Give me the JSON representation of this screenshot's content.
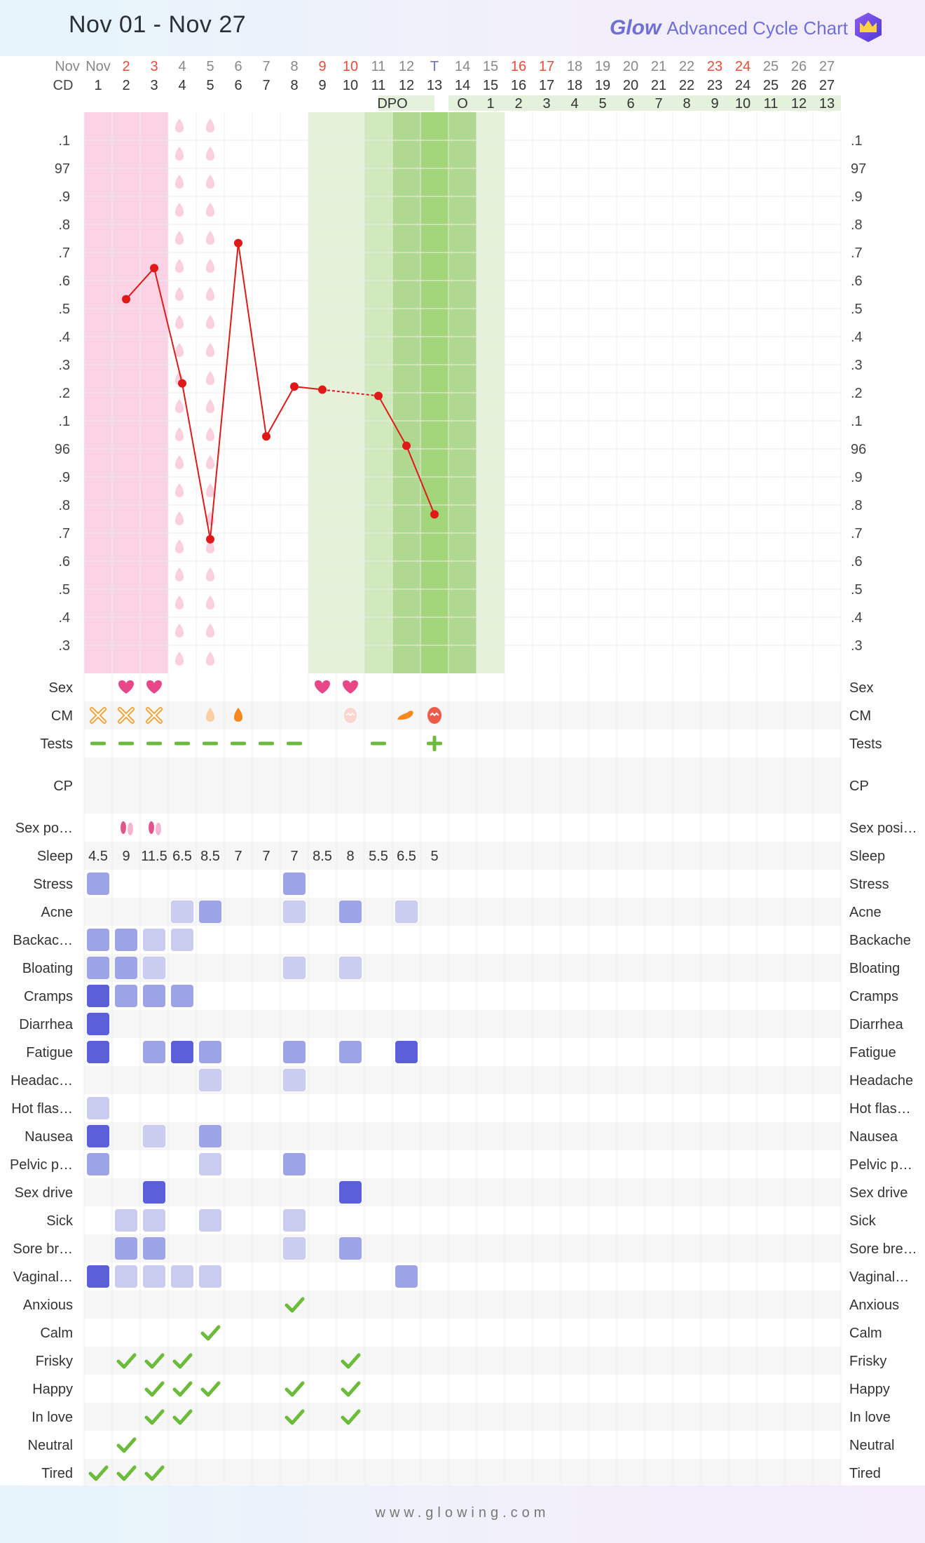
{
  "header": {
    "date_range": "Nov 01 - Nov 27",
    "brand_glow": "Glow",
    "brand_subtitle": "Advanced Cycle Chart"
  },
  "footer": {
    "url": "www.glowing.com"
  },
  "colors": {
    "period": "#fbd3e4",
    "fertile_light": "#e5f2d9",
    "fertile_mid": "#d0e9bd",
    "fertile_dark": "#b0d891",
    "peak": "#a3d57a",
    "temp_line": "#e01818",
    "heart": "#e94589",
    "check": "#6dbb3c",
    "accent": "#6f6fd6",
    "red_label": "#e84b3b"
  },
  "days": {
    "month_label": "Nov",
    "cd_label": "CD",
    "dpo_label": "DPO",
    "dates": [
      "Nov",
      "2",
      "3",
      "4",
      "5",
      "6",
      "7",
      "8",
      "9",
      "10",
      "11",
      "12",
      "T",
      "14",
      "15",
      "16",
      "17",
      "18",
      "19",
      "20",
      "21",
      "22",
      "23",
      "24",
      "25",
      "26",
      "27"
    ],
    "date_colors": [
      "gray",
      "red",
      "red",
      "gray",
      "gray",
      "gray",
      "gray",
      "gray",
      "red",
      "red",
      "gray",
      "gray",
      "purple",
      "gray",
      "gray",
      "red",
      "red",
      "gray",
      "gray",
      "gray",
      "gray",
      "gray",
      "red",
      "red",
      "gray",
      "gray",
      "gray"
    ],
    "cd": [
      "1",
      "2",
      "3",
      "4",
      "5",
      "6",
      "7",
      "8",
      "9",
      "10",
      "11",
      "12",
      "13",
      "14",
      "15",
      "16",
      "17",
      "18",
      "19",
      "20",
      "21",
      "22",
      "23",
      "24",
      "25",
      "26",
      "27"
    ],
    "dpo": [
      "O",
      "1",
      "2",
      "3",
      "4",
      "5",
      "6",
      "7",
      "8",
      "9",
      "10",
      "11",
      "12",
      "13"
    ]
  },
  "temp_axis_labels": [
    ".1",
    "97",
    ".9",
    ".8",
    ".7",
    ".6",
    ".5",
    ".4",
    ".3",
    ".2",
    ".1",
    "96",
    ".9",
    ".8",
    ".7",
    ".6",
    ".5",
    ".4",
    ".3"
  ],
  "chart_data": {
    "type": "line",
    "title": "",
    "xlabel": "CD",
    "ylabel": "",
    "ylim": [
      95.3,
      97.1
    ],
    "x": [
      2,
      3,
      4,
      5,
      6,
      7,
      8,
      9,
      11,
      12,
      13
    ],
    "y": [
      96.5,
      96.6,
      96.23,
      95.73,
      96.68,
      96.06,
      96.22,
      96.21,
      96.19,
      96.03,
      95.81
    ],
    "dashed_segment_between": [
      9,
      11
    ],
    "period_days": [
      1,
      2,
      3
    ],
    "spotting_days": [
      4,
      5
    ],
    "fertile_days": [
      9,
      10,
      11,
      12,
      13,
      14,
      15
    ],
    "peak_day": 13
  },
  "rows": [
    {
      "label_left": "Sex",
      "label_right": "Sex",
      "kind": "heart",
      "cells": {
        "2": 1,
        "3": 1,
        "9": 1,
        "10": 1
      }
    },
    {
      "label_left": "CM",
      "label_right": "CM",
      "kind": "cm",
      "cells": {
        "1": "dry",
        "2": "dry",
        "3": "dry",
        "5": "sticky",
        "6": "creamy",
        "10": "eggwhite-pale",
        "12": "watery",
        "13": "eggwhite"
      }
    },
    {
      "label_left": "Tests",
      "label_right": "Tests",
      "kind": "test",
      "cells": {
        "1": "neg",
        "2": "neg",
        "3": "neg",
        "4": "neg",
        "5": "neg",
        "6": "neg",
        "7": "neg",
        "8": "neg",
        "11": "neg",
        "13": "pos"
      }
    },
    {
      "label_left": "CP",
      "label_right": "CP",
      "kind": "empty",
      "tall": true,
      "cells": {}
    },
    {
      "label_left": "Sex po…",
      "label_right": "Sex posi…",
      "kind": "feet",
      "cells": {
        "2": 1,
        "3": 1
      }
    },
    {
      "label_left": "Sleep",
      "label_right": "Sleep",
      "kind": "text",
      "cells": {
        "1": "4.5",
        "2": "9",
        "3": "11.5",
        "4": "6.5",
        "5": "8.5",
        "6": "7",
        "7": "7",
        "8": "7",
        "9": "8.5",
        "10": "8",
        "11": "5.5",
        "12": "6.5",
        "13": "5"
      }
    },
    {
      "label_left": "Stress",
      "label_right": "Stress",
      "kind": "sym",
      "cells": {
        "1": 2,
        "8": 2
      }
    },
    {
      "label_left": "Acne",
      "label_right": "Acne",
      "kind": "sym",
      "cells": {
        "4": 1,
        "5": 2,
        "8": 1,
        "10": 2,
        "12": 1
      }
    },
    {
      "label_left": "Backac…",
      "label_right": "Backache",
      "kind": "sym",
      "cells": {
        "1": 2,
        "2": 2,
        "3": 1,
        "4": 1
      }
    },
    {
      "label_left": "Bloating",
      "label_right": "Bloating",
      "kind": "sym",
      "cells": {
        "1": 2,
        "2": 2,
        "3": 1,
        "8": 1,
        "10": 1
      }
    },
    {
      "label_left": "Cramps",
      "label_right": "Cramps",
      "kind": "sym",
      "cells": {
        "1": 3,
        "2": 2,
        "3": 2,
        "4": 2
      }
    },
    {
      "label_left": "Diarrhea",
      "label_right": "Diarrhea",
      "kind": "sym",
      "cells": {
        "1": 3
      }
    },
    {
      "label_left": "Fatigue",
      "label_right": "Fatigue",
      "kind": "sym",
      "cells": {
        "1": 3,
        "3": 2,
        "4": 3,
        "5": 2,
        "8": 2,
        "10": 2,
        "12": 3
      }
    },
    {
      "label_left": "Headac…",
      "label_right": "Headache",
      "kind": "sym",
      "cells": {
        "5": 1,
        "8": 1
      }
    },
    {
      "label_left": "Hot flas…",
      "label_right": "Hot flas…",
      "kind": "sym",
      "cells": {
        "1": 1
      }
    },
    {
      "label_left": "Nausea",
      "label_right": "Nausea",
      "kind": "sym",
      "cells": {
        "1": 3,
        "3": 1,
        "5": 2
      }
    },
    {
      "label_left": "Pelvic p…",
      "label_right": "Pelvic p…",
      "kind": "sym",
      "cells": {
        "1": 2,
        "5": 1,
        "8": 2
      }
    },
    {
      "label_left": "Sex drive",
      "label_right": "Sex drive",
      "kind": "sym",
      "cells": {
        "3": 3,
        "10": 3
      }
    },
    {
      "label_left": "Sick",
      "label_right": "Sick",
      "kind": "sym",
      "cells": {
        "2": 1,
        "3": 1,
        "5": 1,
        "8": 1
      }
    },
    {
      "label_left": "Sore br…",
      "label_right": "Sore bre…",
      "kind": "sym",
      "cells": {
        "2": 2,
        "3": 2,
        "8": 1,
        "10": 2
      }
    },
    {
      "label_left": "Vaginal…",
      "label_right": "Vaginal…",
      "kind": "sym",
      "cells": {
        "1": 3,
        "2": 1,
        "3": 1,
        "4": 1,
        "5": 1,
        "12": 2
      }
    },
    {
      "label_left": "Anxious",
      "label_right": "Anxious",
      "kind": "check",
      "cells": {
        "8": 1
      }
    },
    {
      "label_left": "Calm",
      "label_right": "Calm",
      "kind": "check",
      "cells": {
        "5": 1
      }
    },
    {
      "label_left": "Frisky",
      "label_right": "Frisky",
      "kind": "check",
      "cells": {
        "2": 1,
        "3": 1,
        "4": 1,
        "10": 1
      }
    },
    {
      "label_left": "Happy",
      "label_right": "Happy",
      "kind": "check",
      "cells": {
        "3": 1,
        "4": 1,
        "5": 1,
        "8": 1,
        "10": 1
      }
    },
    {
      "label_left": "In love",
      "label_right": "In love",
      "kind": "check",
      "cells": {
        "3": 1,
        "4": 1,
        "8": 1,
        "10": 1
      }
    },
    {
      "label_left": "Neutral",
      "label_right": "Neutral",
      "kind": "check",
      "cells": {
        "2": 1
      }
    },
    {
      "label_left": "Tired",
      "label_right": "Tired",
      "kind": "check",
      "cells": {
        "1": 1,
        "2": 1,
        "3": 1
      }
    }
  ]
}
